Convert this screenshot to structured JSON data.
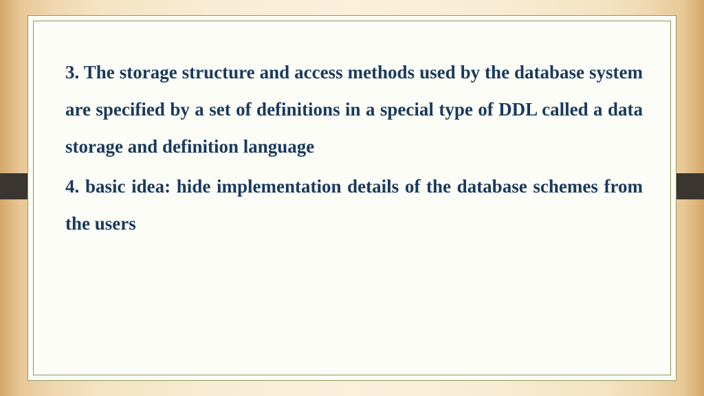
{
  "slide": {
    "text_color": "#1a3a5c",
    "border_color": "#8a9a5b",
    "inner_bg": "#fdfdf8",
    "ribbon_color": "#3a3530",
    "font_size": 27,
    "line_height": 2.0,
    "items": {
      "item3": {
        "number": "3.",
        "text": "The storage structure and access methods used by the database system are specified by a set of definitions in a special type of DDL called a data storage and definition language"
      },
      "item4": {
        "number": "4.",
        "text": "basic idea: hide implementation details of the database schemes from the users"
      }
    }
  }
}
